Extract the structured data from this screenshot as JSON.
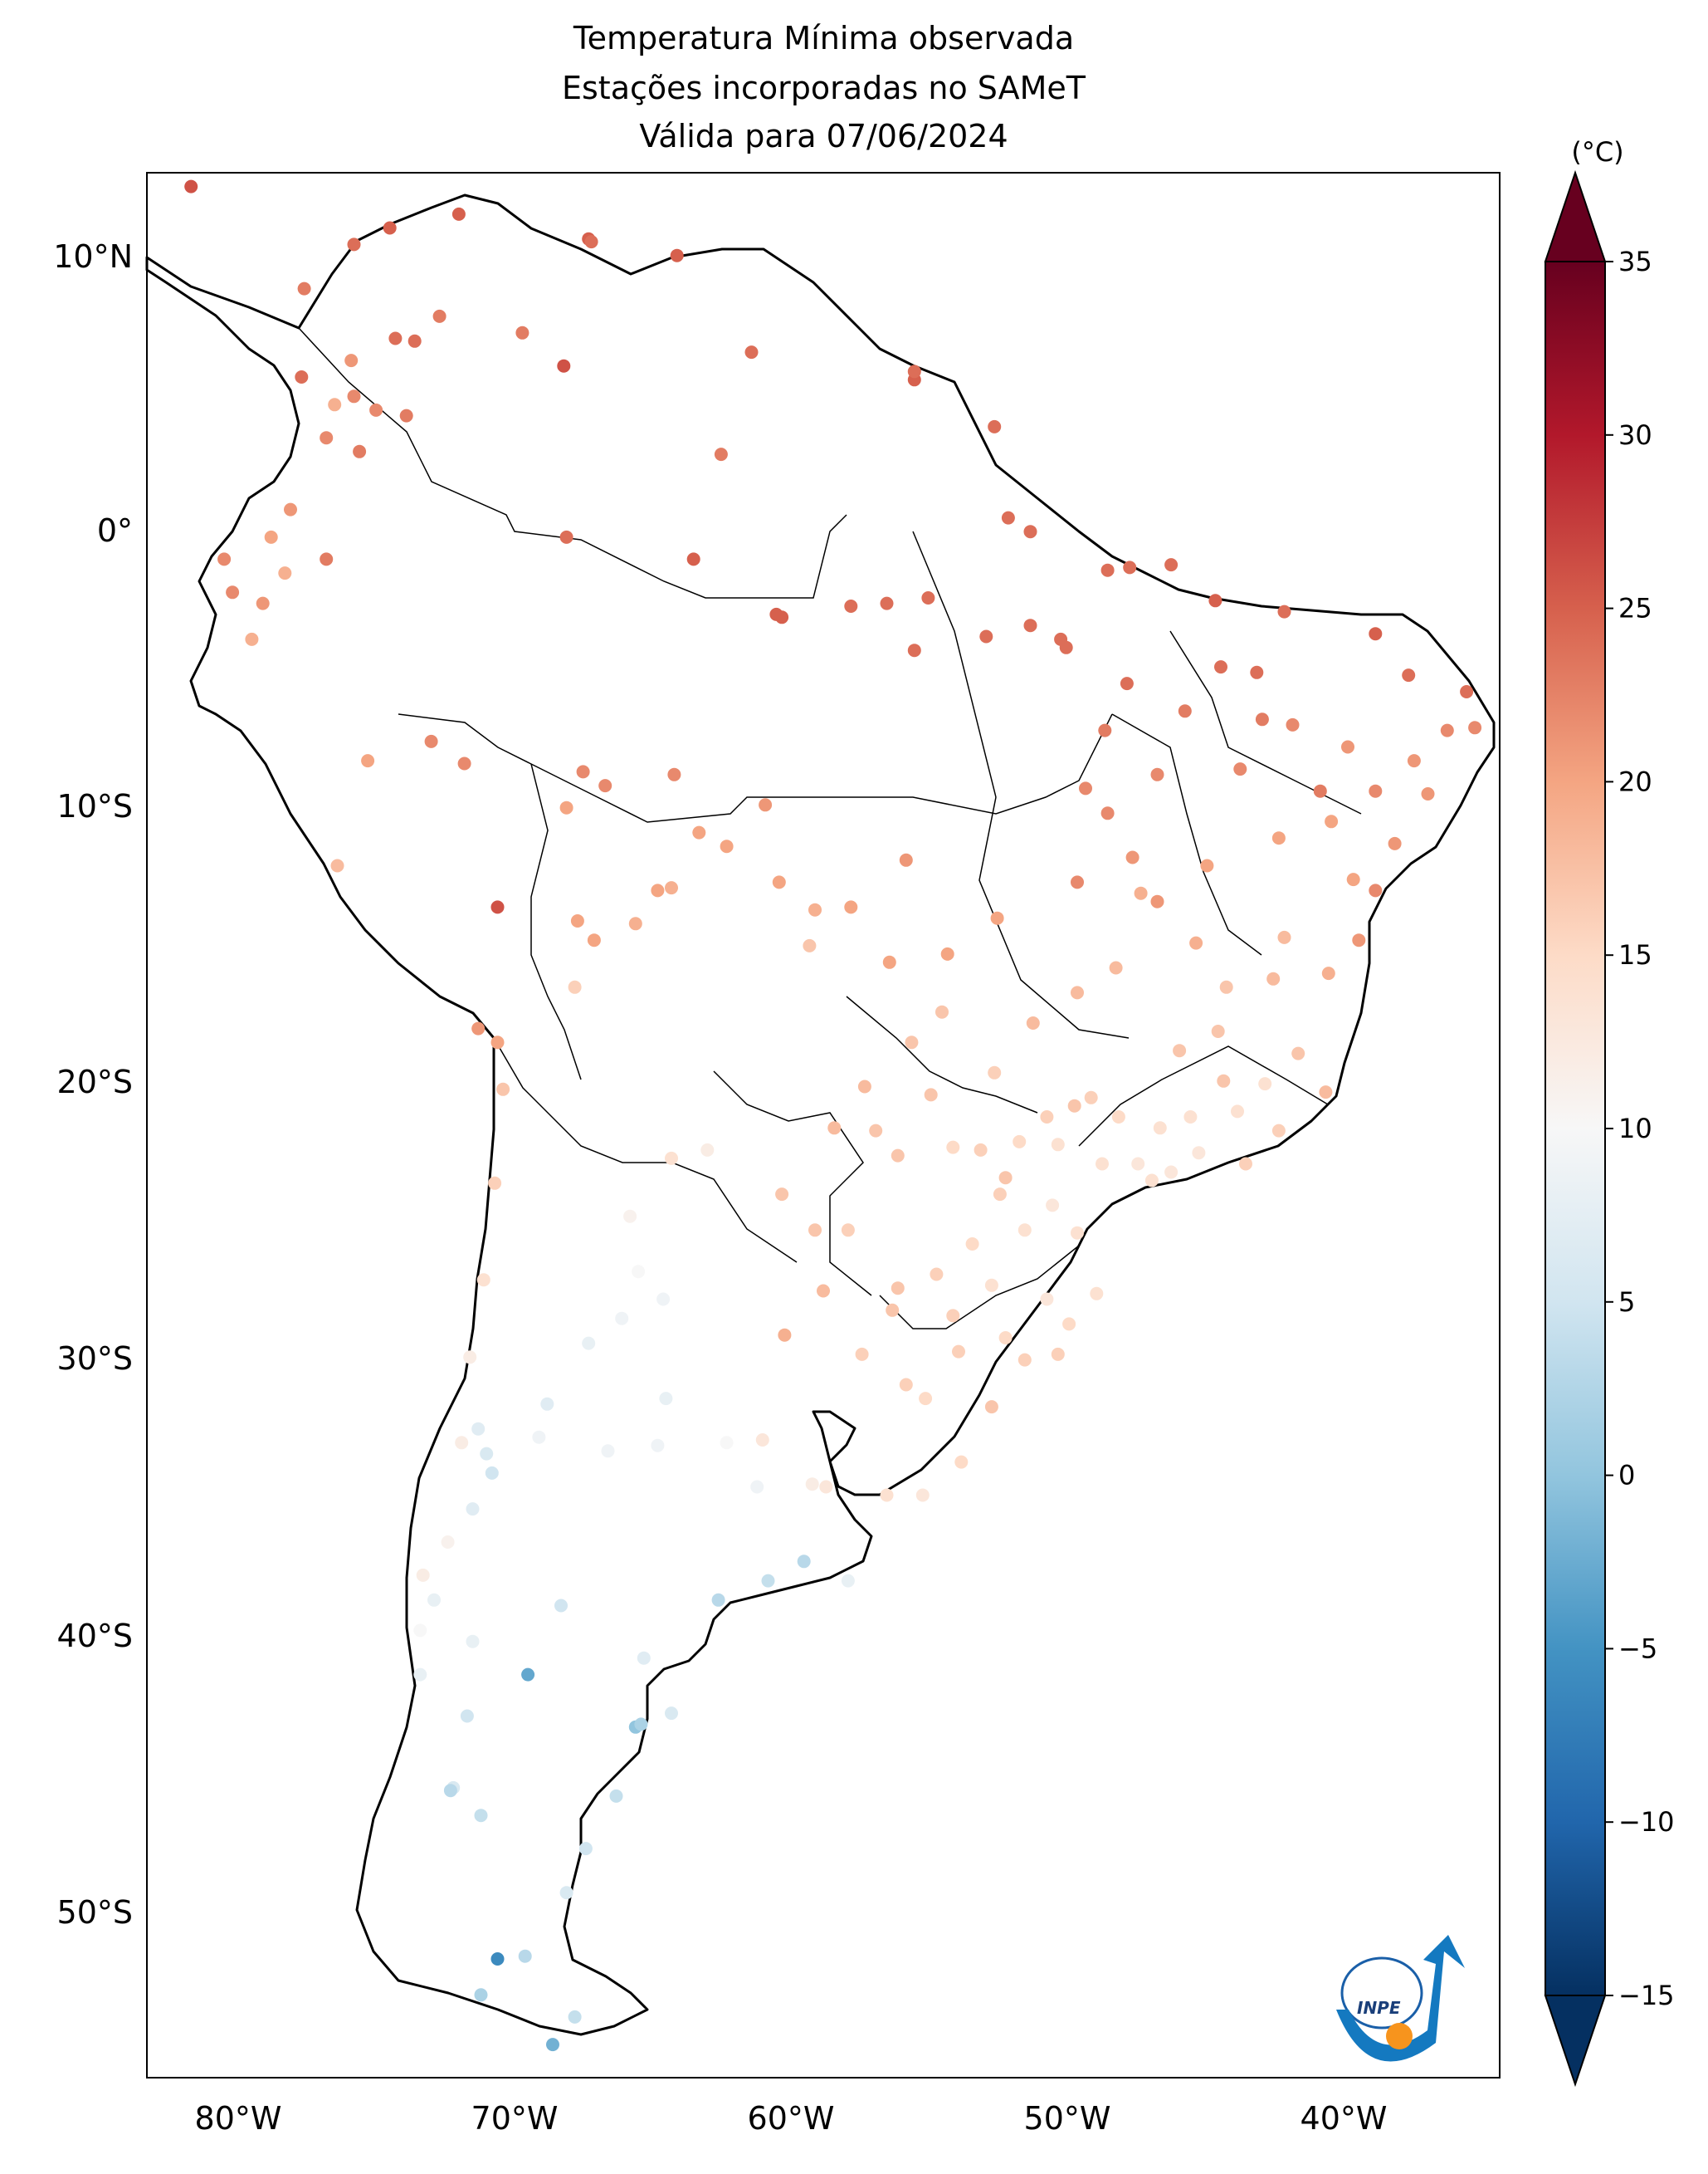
{
  "title": {
    "line1": "Temperatura Mínima observada",
    "line2": "Estações incorporadas no SAMeT",
    "line3": "Válida para 07/06/2024"
  },
  "colorbar": {
    "unit": "(°C)",
    "ticks": [
      "35",
      "30",
      "25",
      "20",
      "15",
      "10",
      "5",
      "0",
      "−5",
      "−10",
      "−15"
    ],
    "colormap": "RdBu_r",
    "min": -15,
    "max": 35,
    "extend": "both"
  },
  "map": {
    "lat_ticks": [
      "10°N",
      "0°",
      "10°S",
      "20°S",
      "30°S",
      "40°S",
      "50°S"
    ],
    "lon_ticks": [
      "80°W",
      "70°W",
      "60°W",
      "50°W",
      "40°W"
    ],
    "extent": {
      "lon_min": -83,
      "lon_max": -34,
      "lat_min": -56,
      "lat_max": 13
    },
    "logo": "inpe-logo",
    "logo_text": "INPE"
  },
  "stations": [
    {
      "lon": -81.4,
      "lat": 12.5,
      "t": 26
    },
    {
      "lon": -71.7,
      "lat": 11.5,
      "t": 25
    },
    {
      "lon": -74.2,
      "lat": 11.0,
      "t": 25
    },
    {
      "lon": -75.5,
      "lat": 10.4,
      "t": 24
    },
    {
      "lon": -67.0,
      "lat": 10.6,
      "t": 25
    },
    {
      "lon": -63.8,
      "lat": 10.0,
      "t": 25
    },
    {
      "lon": -66.9,
      "lat": 10.5,
      "t": 24
    },
    {
      "lon": -77.3,
      "lat": 8.8,
      "t": 23
    },
    {
      "lon": -72.4,
      "lat": 7.8,
      "t": 23
    },
    {
      "lon": -69.4,
      "lat": 7.2,
      "t": 23
    },
    {
      "lon": -73.3,
      "lat": 6.9,
      "t": 24
    },
    {
      "lon": -74.0,
      "lat": 7.0,
      "t": 24
    },
    {
      "lon": -75.6,
      "lat": 6.2,
      "t": 21
    },
    {
      "lon": -77.4,
      "lat": 5.6,
      "t": 24
    },
    {
      "lon": -75.5,
      "lat": 4.9,
      "t": 22
    },
    {
      "lon": -74.7,
      "lat": 4.4,
      "t": 22
    },
    {
      "lon": -73.6,
      "lat": 4.2,
      "t": 23
    },
    {
      "lon": -76.5,
      "lat": 3.4,
      "t": 22
    },
    {
      "lon": -75.3,
      "lat": 2.9,
      "t": 23
    },
    {
      "lon": -76.2,
      "lat": 4.6,
      "t": 19
    },
    {
      "lon": -67.9,
      "lat": 6.0,
      "t": 26
    },
    {
      "lon": -61.1,
      "lat": 6.5,
      "t": 24
    },
    {
      "lon": -55.2,
      "lat": 5.5,
      "t": 25
    },
    {
      "lon": -55.2,
      "lat": 5.8,
      "t": 24
    },
    {
      "lon": -52.3,
      "lat": 3.8,
      "t": 24
    },
    {
      "lon": -51.0,
      "lat": 0.0,
      "t": 24
    },
    {
      "lon": -51.8,
      "lat": 0.5,
      "t": 24
    },
    {
      "lon": -62.2,
      "lat": 2.8,
      "t": 23
    },
    {
      "lon": -77.8,
      "lat": 0.8,
      "t": 21
    },
    {
      "lon": -78.5,
      "lat": -0.2,
      "t": 20
    },
    {
      "lon": -79.9,
      "lat": -2.2,
      "t": 22
    },
    {
      "lon": -78.0,
      "lat": -1.5,
      "t": 19
    },
    {
      "lon": -76.5,
      "lat": -1.0,
      "t": 23
    },
    {
      "lon": -80.2,
      "lat": -1.0,
      "t": 22
    },
    {
      "lon": -79.2,
      "lat": -3.9,
      "t": 19
    },
    {
      "lon": -78.8,
      "lat": -2.6,
      "t": 21
    },
    {
      "lon": -67.8,
      "lat": -0.2,
      "t": 24
    },
    {
      "lon": -63.2,
      "lat": -1.0,
      "t": 25
    },
    {
      "lon": -60.0,
      "lat": -3.1,
      "t": 25
    },
    {
      "lon": -60.2,
      "lat": -3.0,
      "t": 25
    },
    {
      "lon": -57.5,
      "lat": -2.7,
      "t": 24
    },
    {
      "lon": -56.2,
      "lat": -2.6,
      "t": 24
    },
    {
      "lon": -54.7,
      "lat": -2.4,
      "t": 24
    },
    {
      "lon": -55.2,
      "lat": -4.3,
      "t": 24
    },
    {
      "lon": -52.6,
      "lat": -3.8,
      "t": 24
    },
    {
      "lon": -51.0,
      "lat": -3.4,
      "t": 24
    },
    {
      "lon": -49.7,
      "lat": -4.2,
      "t": 24
    },
    {
      "lon": -49.9,
      "lat": -3.9,
      "t": 24
    },
    {
      "lon": -48.2,
      "lat": -1.4,
      "t": 24
    },
    {
      "lon": -47.4,
      "lat": -1.3,
      "t": 24
    },
    {
      "lon": -45.9,
      "lat": -1.2,
      "t": 24
    },
    {
      "lon": -44.3,
      "lat": -2.5,
      "t": 25
    },
    {
      "lon": -41.8,
      "lat": -2.9,
      "t": 24
    },
    {
      "lon": -38.5,
      "lat": -3.7,
      "t": 25
    },
    {
      "lon": -37.3,
      "lat": -5.2,
      "t": 24
    },
    {
      "lon": -35.2,
      "lat": -5.8,
      "t": 24
    },
    {
      "lon": -34.9,
      "lat": -7.1,
      "t": 22
    },
    {
      "lon": -35.9,
      "lat": -7.2,
      "t": 22
    },
    {
      "lon": -37.1,
      "lat": -8.3,
      "t": 21
    },
    {
      "lon": -38.5,
      "lat": -9.4,
      "t": 22
    },
    {
      "lon": -40.5,
      "lat": -9.4,
      "t": 23
    },
    {
      "lon": -42.8,
      "lat": -5.1,
      "t": 24
    },
    {
      "lon": -44.1,
      "lat": -4.9,
      "t": 24
    },
    {
      "lon": -45.4,
      "lat": -6.5,
      "t": 23
    },
    {
      "lon": -47.5,
      "lat": -5.5,
      "t": 24
    },
    {
      "lon": -48.3,
      "lat": -7.2,
      "t": 23
    },
    {
      "lon": -48.2,
      "lat": -10.2,
      "t": 22
    },
    {
      "lon": -49.3,
      "lat": -12.7,
      "t": 22
    },
    {
      "lon": -47.3,
      "lat": -11.8,
      "t": 21
    },
    {
      "lon": -46.4,
      "lat": -13.4,
      "t": 21
    },
    {
      "lon": -44.6,
      "lat": -12.1,
      "t": 20
    },
    {
      "lon": -42.0,
      "lat": -11.1,
      "t": 20
    },
    {
      "lon": -39.3,
      "lat": -12.6,
      "t": 20
    },
    {
      "lon": -38.5,
      "lat": -13.0,
      "t": 22
    },
    {
      "lon": -39.1,
      "lat": -14.8,
      "t": 21
    },
    {
      "lon": -40.2,
      "lat": -16.0,
      "t": 19
    },
    {
      "lon": -41.8,
      "lat": -14.7,
      "t": 18
    },
    {
      "lon": -43.9,
      "lat": -16.5,
      "t": 17
    },
    {
      "lon": -44.0,
      "lat": -19.9,
      "t": 17
    },
    {
      "lon": -45.6,
      "lat": -18.8,
      "t": 17
    },
    {
      "lon": -47.9,
      "lat": -15.8,
      "t": 18
    },
    {
      "lon": -49.3,
      "lat": -16.7,
      "t": 18
    },
    {
      "lon": -50.9,
      "lat": -17.8,
      "t": 18
    },
    {
      "lon": -52.2,
      "lat": -14.0,
      "t": 20
    },
    {
      "lon": -54.0,
      "lat": -15.3,
      "t": 20
    },
    {
      "lon": -56.1,
      "lat": -15.6,
      "t": 20
    },
    {
      "lon": -55.5,
      "lat": -11.9,
      "t": 21
    },
    {
      "lon": -57.5,
      "lat": -13.6,
      "t": 20
    },
    {
      "lon": -58.8,
      "lat": -13.7,
      "t": 19
    },
    {
      "lon": -59.0,
      "lat": -15.0,
      "t": 17
    },
    {
      "lon": -60.1,
      "lat": -12.7,
      "t": 20
    },
    {
      "lon": -60.6,
      "lat": -9.9,
      "t": 21
    },
    {
      "lon": -63.9,
      "lat": -8.8,
      "t": 22
    },
    {
      "lon": -63.0,
      "lat": -10.9,
      "t": 20
    },
    {
      "lon": -62.0,
      "lat": -11.4,
      "t": 20
    },
    {
      "lon": -64.0,
      "lat": -12.9,
      "t": 19
    },
    {
      "lon": -64.5,
      "lat": -13.0,
      "t": 20
    },
    {
      "lon": -65.3,
      "lat": -14.2,
      "t": 19
    },
    {
      "lon": -66.8,
      "lat": -14.8,
      "t": 20
    },
    {
      "lon": -67.4,
      "lat": -14.1,
      "t": 20
    },
    {
      "lon": -67.5,
      "lat": -16.5,
      "t": 16
    },
    {
      "lon": -66.4,
      "lat": -9.2,
      "t": 22
    },
    {
      "lon": -67.8,
      "lat": -10.0,
      "t": 20
    },
    {
      "lon": -67.2,
      "lat": -8.7,
      "t": 22
    },
    {
      "lon": -72.7,
      "lat": -7.6,
      "t": 22
    },
    {
      "lon": -70.3,
      "lat": -13.6,
      "t": 26
    },
    {
      "lon": -71.5,
      "lat": -8.4,
      "t": 22
    },
    {
      "lon": -75.0,
      "lat": -8.3,
      "t": 20
    },
    {
      "lon": -76.1,
      "lat": -12.1,
      "t": 18
    },
    {
      "lon": -71.0,
      "lat": -18.0,
      "t": 21
    },
    {
      "lon": -70.3,
      "lat": -18.5,
      "t": 20
    },
    {
      "lon": -70.1,
      "lat": -20.2,
      "t": 17
    },
    {
      "lon": -70.4,
      "lat": -23.6,
      "t": 16
    },
    {
      "lon": -70.8,
      "lat": -27.1,
      "t": 14
    },
    {
      "lon": -71.3,
      "lat": -29.9,
      "t": 12
    },
    {
      "lon": -71.6,
      "lat": -33.0,
      "t": 12
    },
    {
      "lon": -71.0,
      "lat": -32.5,
      "t": 7
    },
    {
      "lon": -70.7,
      "lat": -33.4,
      "t": 6
    },
    {
      "lon": -70.5,
      "lat": -34.1,
      "t": 5
    },
    {
      "lon": -71.2,
      "lat": -35.4,
      "t": 7
    },
    {
      "lon": -72.1,
      "lat": -36.6,
      "t": 11
    },
    {
      "lon": -73.0,
      "lat": -37.8,
      "t": 12
    },
    {
      "lon": -72.6,
      "lat": -38.7,
      "t": 8
    },
    {
      "lon": -73.1,
      "lat": -39.8,
      "t": 10
    },
    {
      "lon": -73.1,
      "lat": -41.4,
      "t": 8
    },
    {
      "lon": -71.4,
      "lat": -42.9,
      "t": 5
    },
    {
      "lon": -71.9,
      "lat": -45.5,
      "t": 6
    },
    {
      "lon": -72.0,
      "lat": -45.6,
      "t": 3
    },
    {
      "lon": -70.9,
      "lat": -46.5,
      "t": 4
    },
    {
      "lon": -70.3,
      "lat": -51.7,
      "t": -6
    },
    {
      "lon": -69.3,
      "lat": -51.6,
      "t": 3
    },
    {
      "lon": -70.9,
      "lat": -53.0,
      "t": 2
    },
    {
      "lon": -68.3,
      "lat": -54.8,
      "t": -2
    },
    {
      "lon": -67.5,
      "lat": -53.8,
      "t": 4
    },
    {
      "lon": -65.3,
      "lat": -43.3,
      "t": 0
    },
    {
      "lon": -65.1,
      "lat": -43.2,
      "t": 2
    },
    {
      "lon": -64.0,
      "lat": -42.8,
      "t": 6
    },
    {
      "lon": -65.0,
      "lat": -40.8,
      "t": 7
    },
    {
      "lon": -68.0,
      "lat": -38.9,
      "t": 5
    },
    {
      "lon": -69.2,
      "lat": -41.4,
      "t": -3
    },
    {
      "lon": -71.2,
      "lat": -40.2,
      "t": 8
    },
    {
      "lon": -67.1,
      "lat": -47.7,
      "t": 5
    },
    {
      "lon": -67.8,
      "lat": -49.3,
      "t": 6
    },
    {
      "lon": -66.0,
      "lat": -45.8,
      "t": 4
    },
    {
      "lon": -62.3,
      "lat": -38.7,
      "t": 3
    },
    {
      "lon": -60.5,
      "lat": -38.0,
      "t": 4
    },
    {
      "lon": -59.2,
      "lat": -37.3,
      "t": 3
    },
    {
      "lon": -57.6,
      "lat": -38.0,
      "t": 8
    },
    {
      "lon": -58.4,
      "lat": -34.6,
      "t": 13
    },
    {
      "lon": -58.9,
      "lat": -34.5,
      "t": 12
    },
    {
      "lon": -60.9,
      "lat": -34.6,
      "t": 9
    },
    {
      "lon": -62.0,
      "lat": -33.0,
      "t": 10
    },
    {
      "lon": -60.7,
      "lat": -32.9,
      "t": 13
    },
    {
      "lon": -64.2,
      "lat": -31.4,
      "t": 8
    },
    {
      "lon": -64.5,
      "lat": -33.1,
      "t": 9
    },
    {
      "lon": -66.3,
      "lat": -33.3,
      "t": 9
    },
    {
      "lon": -68.8,
      "lat": -32.8,
      "t": 9
    },
    {
      "lon": -68.5,
      "lat": -31.6,
      "t": 7
    },
    {
      "lon": -67.0,
      "lat": -29.4,
      "t": 8
    },
    {
      "lon": -65.8,
      "lat": -28.5,
      "t": 9
    },
    {
      "lon": -65.2,
      "lat": -26.8,
      "t": 10
    },
    {
      "lon": -64.3,
      "lat": -27.8,
      "t": 9
    },
    {
      "lon": -65.5,
      "lat": -24.8,
      "t": 11
    },
    {
      "lon": -64.0,
      "lat": -22.7,
      "t": 14
    },
    {
      "lon": -62.7,
      "lat": -22.4,
      "t": 12
    },
    {
      "lon": -60.0,
      "lat": -24.0,
      "t": 17
    },
    {
      "lon": -58.5,
      "lat": -27.5,
      "t": 18
    },
    {
      "lon": -59.9,
      "lat": -29.1,
      "t": 19
    },
    {
      "lon": -58.8,
      "lat": -25.3,
      "t": 17
    },
    {
      "lon": -57.6,
      "lat": -25.3,
      "t": 16
    },
    {
      "lon": -55.8,
      "lat": -22.6,
      "t": 17
    },
    {
      "lon": -54.6,
      "lat": -20.4,
      "t": 17
    },
    {
      "lon": -53.8,
      "lat": -22.3,
      "t": 15
    },
    {
      "lon": -52.1,
      "lat": -24.0,
      "t": 16
    },
    {
      "lon": -51.2,
      "lat": -25.3,
      "t": 14
    },
    {
      "lon": -49.3,
      "lat": -25.4,
      "t": 14
    },
    {
      "lon": -48.6,
      "lat": -27.6,
      "t": 14
    },
    {
      "lon": -51.2,
      "lat": -30.0,
      "t": 16
    },
    {
      "lon": -52.4,
      "lat": -31.7,
      "t": 17
    },
    {
      "lon": -53.6,
      "lat": -29.7,
      "t": 16
    },
    {
      "lon": -55.5,
      "lat": -30.9,
      "t": 16
    },
    {
      "lon": -57.1,
      "lat": -29.8,
      "t": 16
    },
    {
      "lon": -54.8,
      "lat": -31.4,
      "t": 15
    },
    {
      "lon": -56.2,
      "lat": -34.9,
      "t": 14
    },
    {
      "lon": -54.9,
      "lat": -34.9,
      "t": 13
    },
    {
      "lon": -53.5,
      "lat": -33.7,
      "t": 15
    },
    {
      "lon": -47.1,
      "lat": -22.9,
      "t": 13
    },
    {
      "lon": -46.6,
      "lat": -23.5,
      "t": 14
    },
    {
      "lon": -45.9,
      "lat": -23.2,
      "t": 13
    },
    {
      "lon": -44.9,
      "lat": -22.5,
      "t": 13
    },
    {
      "lon": -43.2,
      "lat": -22.9,
      "t": 16
    },
    {
      "lon": -42.0,
      "lat": -21.7,
      "t": 16
    },
    {
      "lon": -40.3,
      "lat": -20.3,
      "t": 18
    },
    {
      "lon": -41.3,
      "lat": -18.9,
      "t": 17
    },
    {
      "lon": -42.5,
      "lat": -20.0,
      "t": 14
    },
    {
      "lon": -46.3,
      "lat": -21.6,
      "t": 14
    },
    {
      "lon": -47.8,
      "lat": -21.2,
      "t": 15
    },
    {
      "lon": -48.8,
      "lat": -20.5,
      "t": 16
    },
    {
      "lon": -49.4,
      "lat": -20.8,
      "t": 17
    },
    {
      "lon": -50.4,
      "lat": -21.2,
      "t": 16
    },
    {
      "lon": -51.4,
      "lat": -22.1,
      "t": 15
    },
    {
      "lon": -50.0,
      "lat": -22.2,
      "t": 14
    },
    {
      "lon": -48.4,
      "lat": -22.9,
      "t": 14
    },
    {
      "lon": -52.8,
      "lat": -22.4,
      "t": 16
    },
    {
      "lon": -51.9,
      "lat": -23.4,
      "t": 17
    },
    {
      "lon": -50.2,
      "lat": -24.4,
      "t": 13
    },
    {
      "lon": -53.1,
      "lat": -25.8,
      "t": 15
    },
    {
      "lon": -52.4,
      "lat": -27.3,
      "t": 14
    },
    {
      "lon": -50.4,
      "lat": -27.8,
      "t": 13
    },
    {
      "lon": -49.6,
      "lat": -28.7,
      "t": 15
    },
    {
      "lon": -51.9,
      "lat": -29.2,
      "t": 15
    },
    {
      "lon": -50.0,
      "lat": -29.8,
      "t": 16
    },
    {
      "lon": -53.8,
      "lat": -28.4,
      "t": 16
    },
    {
      "lon": -56.0,
      "lat": -28.2,
      "t": 17
    },
    {
      "lon": -54.4,
      "lat": -26.9,
      "t": 16
    },
    {
      "lon": -55.8,
      "lat": -27.4,
      "t": 17
    },
    {
      "lon": -57.0,
      "lat": -20.1,
      "t": 18
    },
    {
      "lon": -56.6,
      "lat": -21.7,
      "t": 17
    },
    {
      "lon": -58.1,
      "lat": -21.6,
      "t": 18
    },
    {
      "lon": -54.2,
      "lat": -17.4,
      "t": 17
    },
    {
      "lon": -55.3,
      "lat": -18.5,
      "t": 17
    },
    {
      "lon": -52.3,
      "lat": -19.6,
      "t": 16
    },
    {
      "lon": -45.2,
      "lat": -21.2,
      "t": 14
    },
    {
      "lon": -43.5,
      "lat": -21.0,
      "t": 14
    },
    {
      "lon": -44.2,
      "lat": -18.1,
      "t": 17
    },
    {
      "lon": -42.2,
      "lat": -16.2,
      "t": 18
    },
    {
      "lon": -45.0,
      "lat": -14.9,
      "t": 19
    },
    {
      "lon": -47.0,
      "lat": -13.1,
      "t": 19
    },
    {
      "lon": -43.4,
      "lat": -8.6,
      "t": 22
    },
    {
      "lon": -41.5,
      "lat": -7.0,
      "t": 22
    },
    {
      "lon": -39.5,
      "lat": -7.8,
      "t": 21
    },
    {
      "lon": -36.6,
      "lat": -9.5,
      "t": 21
    },
    {
      "lon": -37.8,
      "lat": -11.3,
      "t": 21
    },
    {
      "lon": -40.1,
      "lat": -10.5,
      "t": 20
    },
    {
      "lon": -42.6,
      "lat": -6.8,
      "t": 23
    },
    {
      "lon": -46.4,
      "lat": -8.8,
      "t": 22
    },
    {
      "lon": -49.0,
      "lat": -9.3,
      "t": 22
    }
  ]
}
